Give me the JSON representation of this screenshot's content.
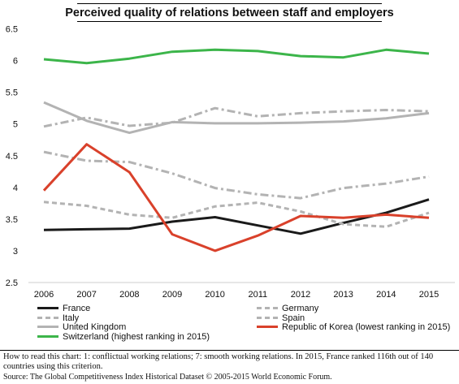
{
  "chart_data": {
    "type": "line",
    "title": "Perceived quality of relations between staff and employers",
    "xlabel": "",
    "ylabel": "",
    "x": [
      "2006",
      "2007",
      "2008",
      "2009",
      "2010",
      "2011",
      "2012",
      "2013",
      "2014",
      "2015"
    ],
    "ylim": [
      2.5,
      6.75
    ],
    "yticks": [
      "2.5",
      "3",
      "3.5",
      "4",
      "4.5",
      "5",
      "5.5",
      "6",
      "6.5"
    ],
    "grid": false,
    "legend_position": "bottom",
    "series": [
      {
        "name": "France",
        "color": "#1a1a1a",
        "style": "solid",
        "values": [
          3.33,
          3.34,
          3.35,
          3.46,
          3.53,
          3.4,
          3.27,
          3.44,
          3.6,
          3.81
        ]
      },
      {
        "name": "Germany",
        "color": "#b3b3b3",
        "style": "dashdot",
        "values": [
          4.96,
          5.1,
          4.97,
          5.02,
          5.25,
          5.12,
          5.17,
          5.2,
          5.22,
          5.2
        ]
      },
      {
        "name": "Italy",
        "color": "#b3b3b3",
        "style": "dashed",
        "values": [
          3.77,
          3.71,
          3.57,
          3.52,
          3.7,
          3.76,
          3.62,
          3.42,
          3.38,
          3.6
        ]
      },
      {
        "name": "Spain",
        "color": "#b3b3b3",
        "style": "dashdot",
        "values": [
          4.56,
          4.42,
          4.4,
          4.22,
          3.99,
          3.89,
          3.83,
          3.99,
          4.06,
          4.17
        ]
      },
      {
        "name": "United Kingdom",
        "color": "#b3b3b3",
        "style": "solid",
        "values": [
          5.34,
          5.05,
          4.86,
          5.03,
          5.01,
          5.01,
          5.02,
          5.04,
          5.09,
          5.17
        ]
      },
      {
        "name": "Republic of Korea (lowest ranking in 2015)",
        "color": "#d9412b",
        "style": "solid",
        "values": [
          3.95,
          4.68,
          4.24,
          3.26,
          3.0,
          3.24,
          3.55,
          3.52,
          3.57,
          3.52
        ]
      },
      {
        "name": "Switzerland (highest ranking in 2015)",
        "color": "#3cb54a",
        "style": "solid",
        "values": [
          6.02,
          5.96,
          6.03,
          6.14,
          6.17,
          6.15,
          6.07,
          6.05,
          6.17,
          6.11
        ]
      }
    ]
  },
  "legend": [
    {
      "label": "France",
      "color": "#1a1a1a",
      "style": "solid"
    },
    {
      "label": "Germany",
      "color": "#b3b3b3",
      "style": "dashdot"
    },
    {
      "label": "Italy",
      "color": "#b3b3b3",
      "style": "dashed"
    },
    {
      "label": "Spain",
      "color": "#b3b3b3",
      "style": "dashdot"
    },
    {
      "label": "United Kingdom",
      "color": "#b3b3b3",
      "style": "solid"
    },
    {
      "label": "Republic of Korea (lowest ranking in 2015)",
      "color": "#d9412b",
      "style": "solid"
    },
    {
      "label": "Switzerland (highest ranking in 2015)",
      "color": "#3cb54a",
      "style": "solid"
    }
  ],
  "note": "How to read this chart: 1: conflictual working relations; 7: smooth working relations. In 2015, France ranked 116th out of 140 countries using this criterion.",
  "source": "Source: The Global Competitiveness Index Historical Dataset © 2005-2015 World Economic Forum."
}
